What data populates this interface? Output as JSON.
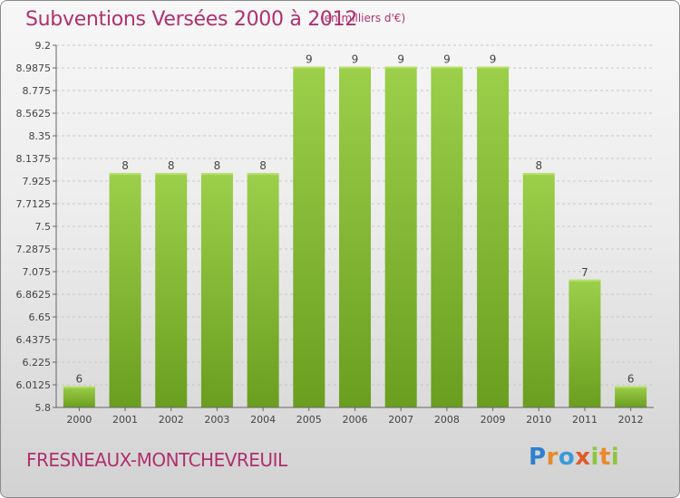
{
  "header": {
    "title": "Subventions Versées 2000 à 2012",
    "unit_note": "(en milliers d'€)"
  },
  "footer": {
    "place_name": "FRESNEAUX-MONTCHEVREUIL",
    "brand": "Proxiti"
  },
  "colors": {
    "title": "#b0306f",
    "bar_top": "#9ccf4a",
    "bar_bottom": "#6a9e1f",
    "grid": "#c8c8c8"
  },
  "chart_data": {
    "type": "bar",
    "categories": [
      "2000",
      "2001",
      "2002",
      "2003",
      "2004",
      "2005",
      "2006",
      "2007",
      "2008",
      "2009",
      "2010",
      "2011",
      "2012"
    ],
    "values": [
      6,
      8,
      8,
      8,
      8,
      9,
      9,
      9,
      9,
      9,
      8,
      7,
      6
    ],
    "data_labels": [
      "6",
      "8",
      "8",
      "8",
      "8",
      "9",
      "9",
      "9",
      "9",
      "9",
      "8",
      "7",
      "6"
    ],
    "ylim": [
      5.8,
      9.2
    ],
    "yticks": [
      "9.2",
      "8.9875",
      "8.775",
      "8.5625",
      "8.35",
      "8.1375",
      "7.925",
      "7.7125",
      "7.5",
      "7.2875",
      "7.075",
      "6.8625",
      "6.65",
      "6.4375",
      "6.225",
      "6.0125",
      "5.8"
    ],
    "grid": "horizontal dashed"
  }
}
